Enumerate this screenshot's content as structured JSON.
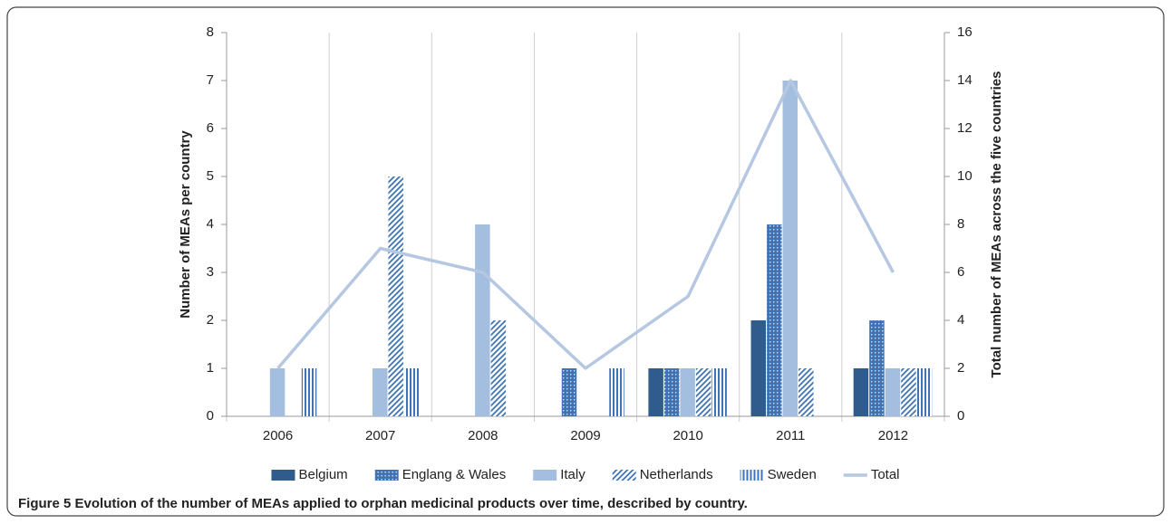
{
  "chart_data": {
    "type": "bar",
    "categories": [
      "2006",
      "2007",
      "2008",
      "2009",
      "2010",
      "2011",
      "2012"
    ],
    "series": [
      {
        "name": "Belgium",
        "color": "#2f5c8c",
        "pattern": "solid",
        "values": [
          0,
          0,
          0,
          0,
          1,
          2,
          1
        ]
      },
      {
        "name": "Englang & Wales",
        "color": "#3f73b3",
        "pattern": "dots",
        "values": [
          0,
          0,
          0,
          1,
          1,
          4,
          2
        ]
      },
      {
        "name": "Italy",
        "color": "#a4bedf",
        "pattern": "solid",
        "values": [
          1,
          1,
          4,
          0,
          1,
          7,
          1
        ]
      },
      {
        "name": "Netherlands",
        "color": "#3f73b3",
        "pattern": "diagonal",
        "values": [
          0,
          5,
          2,
          0,
          1,
          1,
          1
        ]
      },
      {
        "name": "Sweden",
        "color": "#3f73b3",
        "pattern": "vertical",
        "values": [
          1,
          1,
          0,
          1,
          1,
          0,
          1
        ]
      },
      {
        "name": "Total",
        "color": "#b5c7e1",
        "type": "line",
        "axis": "y2",
        "values": [
          2,
          7,
          6,
          2,
          5,
          14,
          6
        ]
      }
    ],
    "ylabel": "Number of MEAs per country",
    "y2label": "Total number of MEAs across the five countries",
    "ylim": [
      0,
      8
    ],
    "yticks": [
      0,
      1,
      2,
      3,
      4,
      5,
      6,
      7,
      8
    ],
    "y2lim": [
      0,
      16
    ],
    "y2ticks": [
      0,
      2,
      4,
      6,
      8,
      10,
      12,
      14,
      16
    ],
    "legend": "bottom"
  },
  "caption": {
    "label": "Figure 5",
    "text": "Evolution of the number of MEAs applied to orphan medicinal products over time, described by country."
  }
}
